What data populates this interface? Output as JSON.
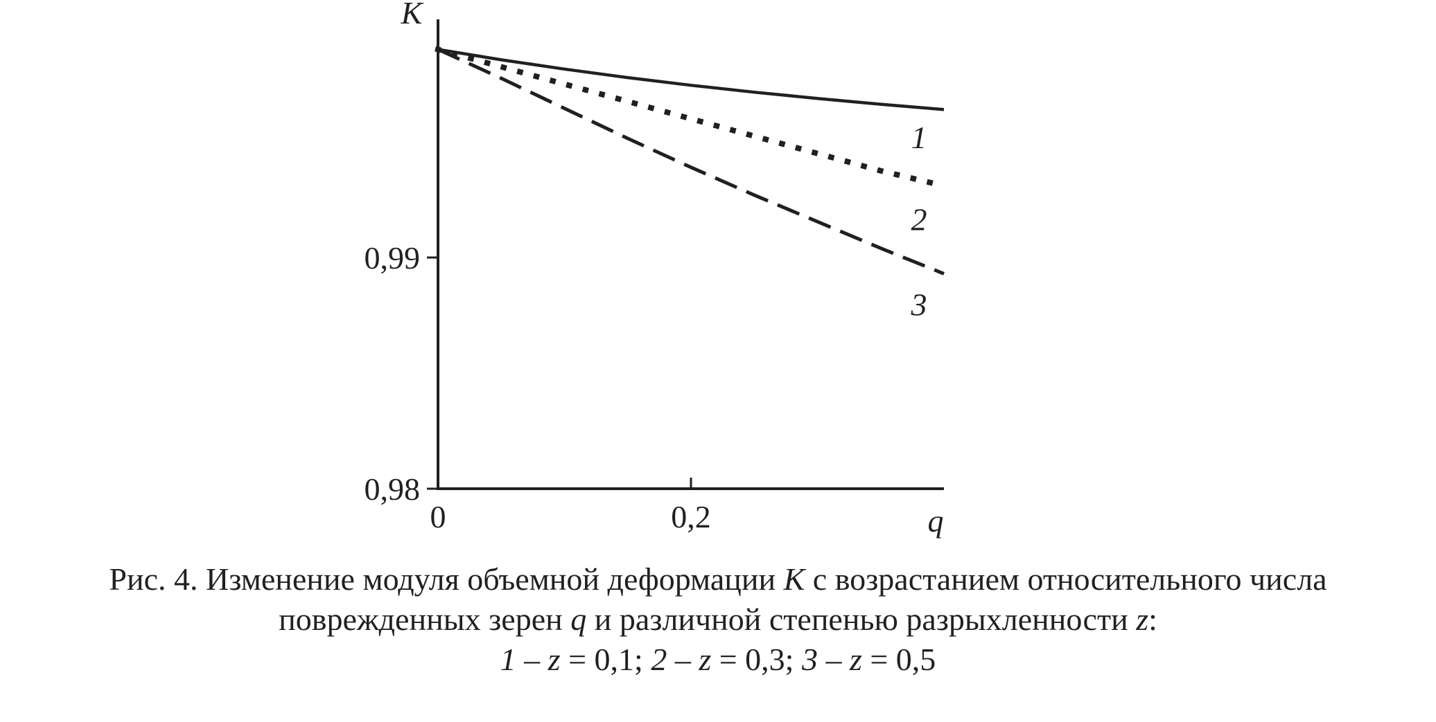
{
  "chart_data": {
    "type": "line",
    "title": "",
    "xlabel": "q",
    "ylabel": "K",
    "xlim": [
      0,
      0.4
    ],
    "ylim": [
      0.98,
      1.0
    ],
    "x_ticks": [
      {
        "value": 0,
        "label": "0"
      },
      {
        "value": 0.2,
        "label": "0,2"
      }
    ],
    "y_ticks": [
      {
        "value": 0.99,
        "label": "0,99"
      },
      {
        "value": 0.98,
        "label": "0,98"
      }
    ],
    "series": [
      {
        "name": "1",
        "style": "solid",
        "x": [
          0,
          0.05,
          0.1,
          0.15,
          0.2,
          0.25,
          0.3,
          0.35,
          0.4
        ],
        "y": [
          0.999,
          0.99855,
          0.99815,
          0.99778,
          0.99745,
          0.99715,
          0.99688,
          0.99663,
          0.9964
        ]
      },
      {
        "name": "2",
        "style": "dotted",
        "x": [
          0,
          0.05,
          0.1,
          0.15,
          0.2,
          0.25,
          0.3,
          0.35,
          0.4
        ],
        "y": [
          0.999,
          0.99825,
          0.9975,
          0.99675,
          0.996,
          0.99525,
          0.9945,
          0.99375,
          0.9931
        ]
      },
      {
        "name": "3",
        "style": "dashed",
        "x": [
          0,
          0.05,
          0.1,
          0.15,
          0.2,
          0.25,
          0.3,
          0.35,
          0.4
        ],
        "y": [
          0.999,
          0.99775,
          0.99645,
          0.99515,
          0.9939,
          0.9927,
          0.99155,
          0.9904,
          0.9893
        ]
      }
    ],
    "grid": false,
    "legend": "none"
  },
  "caption": {
    "line1_a": "Рис. 4. Изменение модуля объемной деформации ",
    "line1_var": "K",
    "line1_b": " с возрастанием относительного числа",
    "line2_a": "поврежденных зерен ",
    "line2_var_q": "q",
    "line2_b": " и различной степенью разрыхленности ",
    "line2_var_z": "z",
    "line2_c": ":",
    "line3": {
      "n1": "1",
      "t1": " – ",
      "z1": "z",
      "v1": " = 0,1; ",
      "n2": "2",
      "t2": " – ",
      "z2": "z",
      "v2": " = 0,3; ",
      "n3": "3",
      "t3": " – ",
      "z3": "z",
      "v3": " = 0,5"
    }
  }
}
